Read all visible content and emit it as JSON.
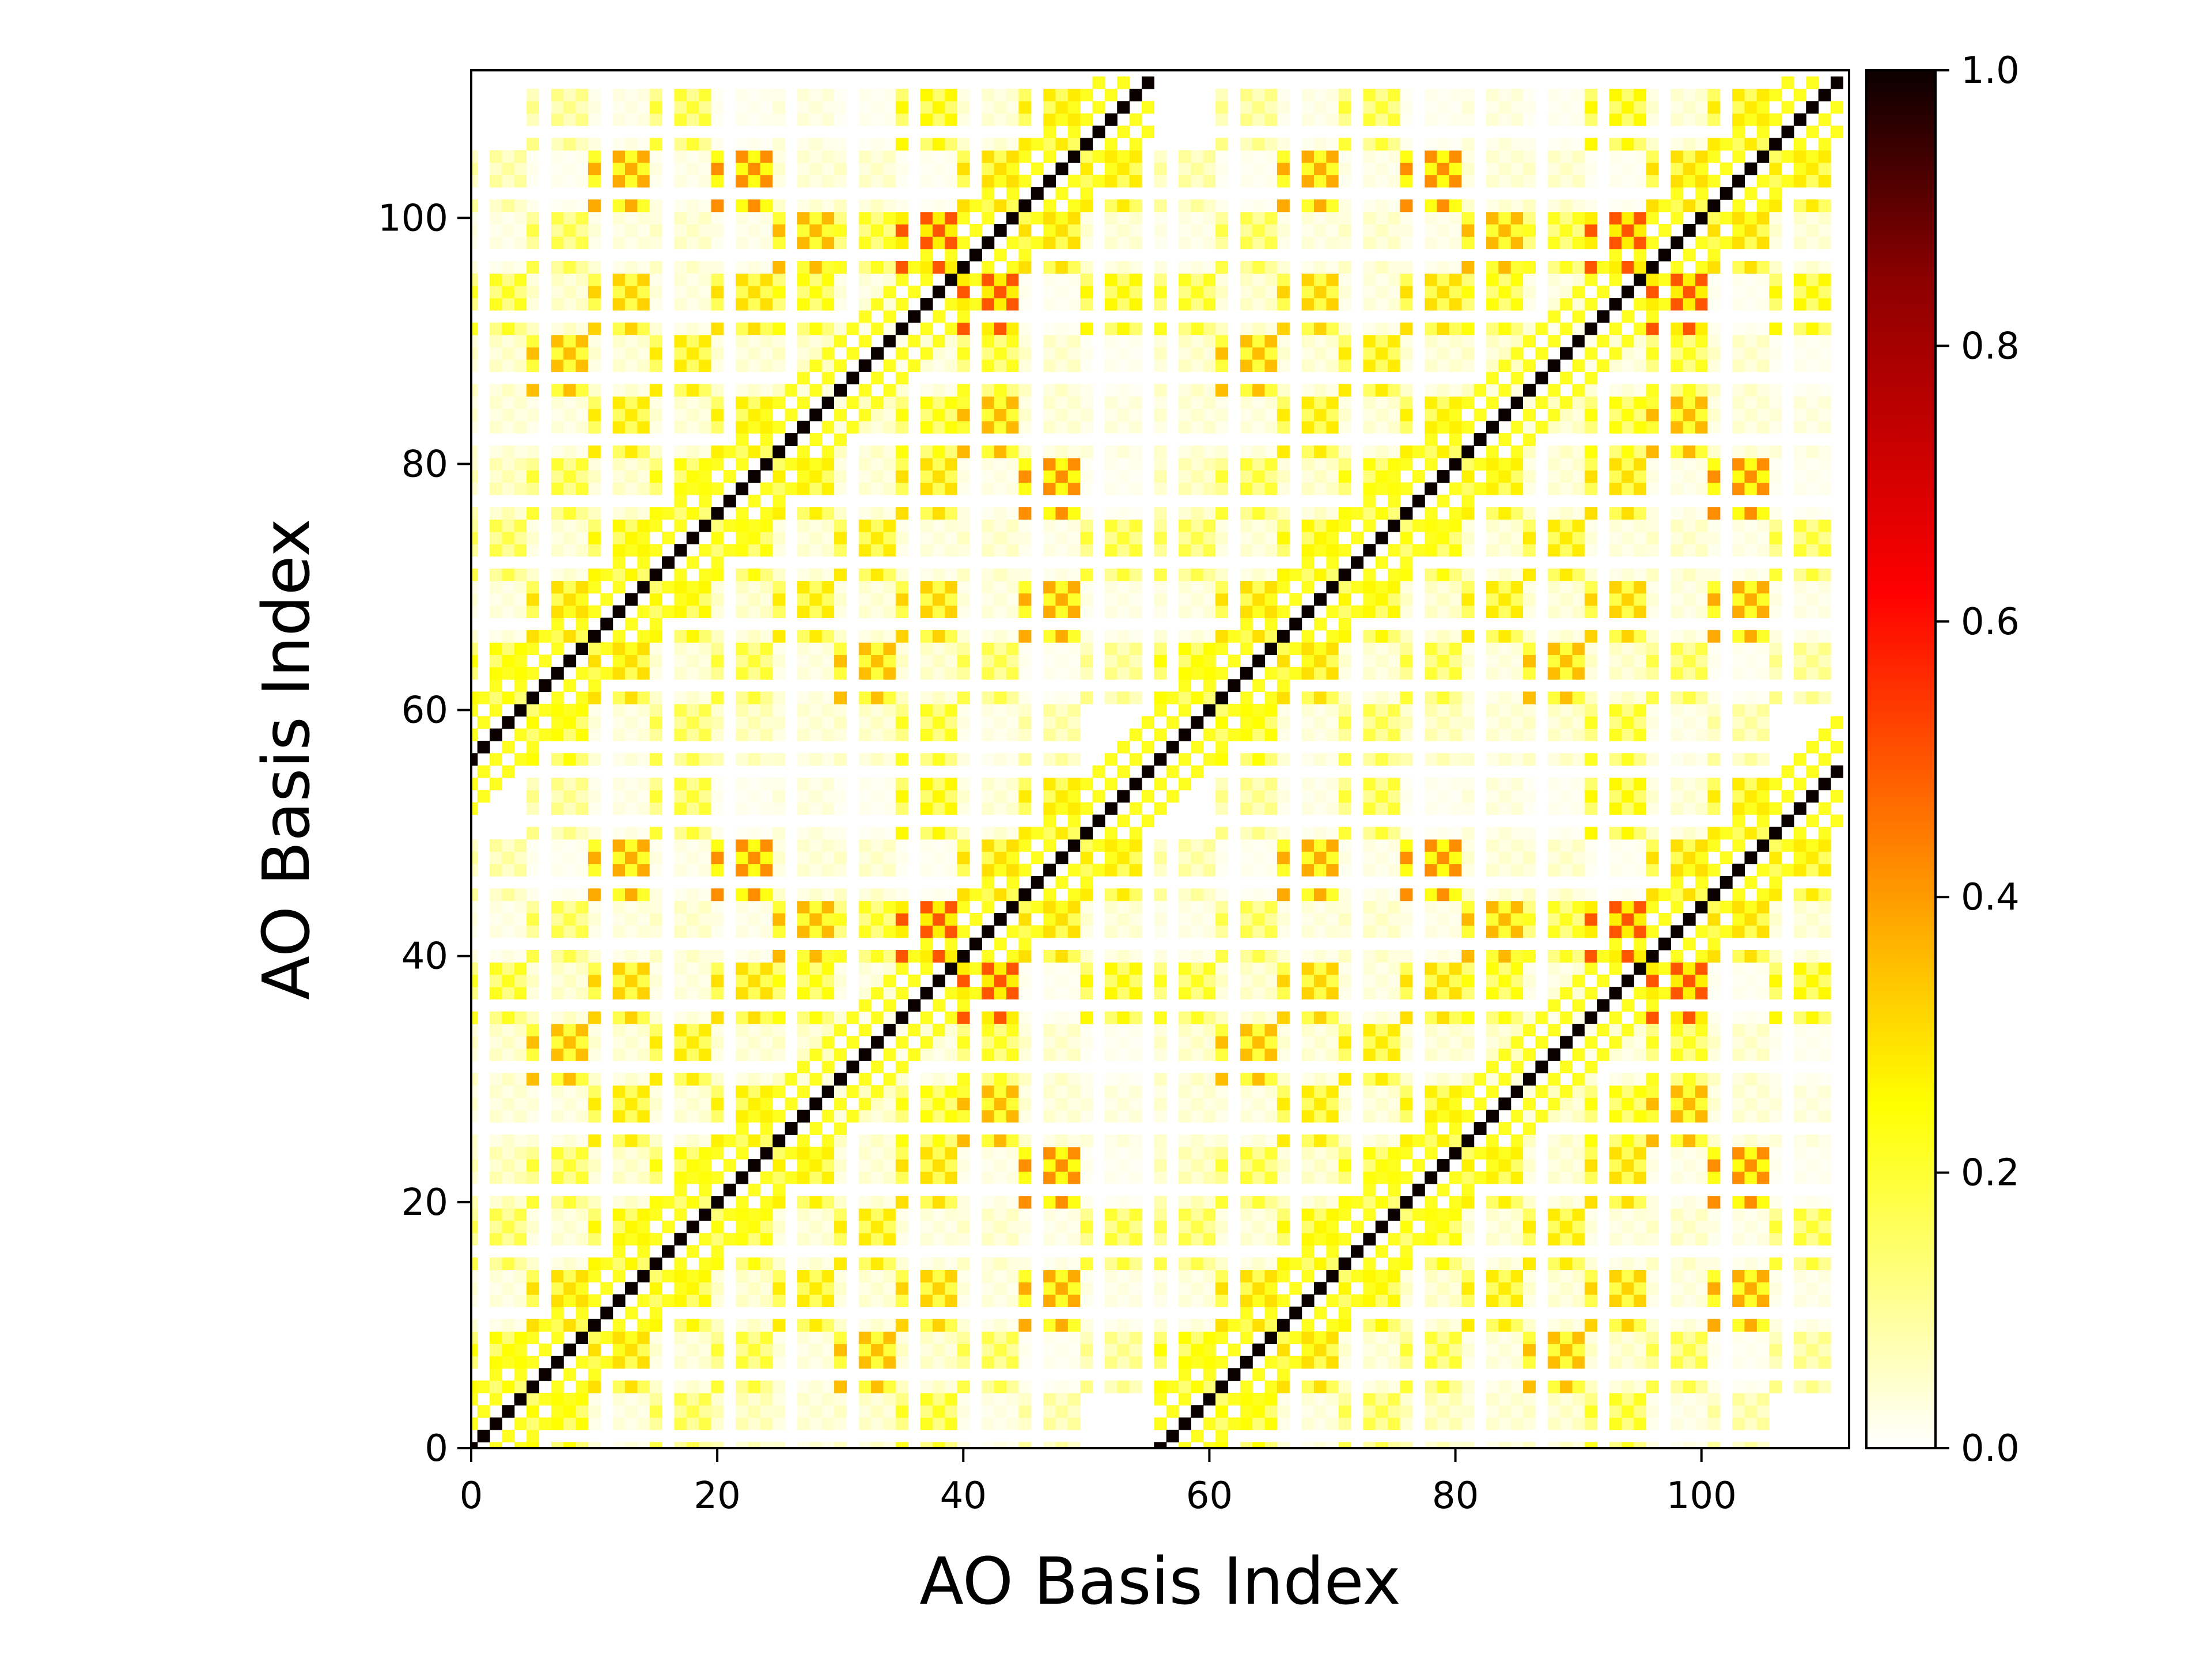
{
  "chart_data": {
    "type": "heatmap",
    "title": "",
    "xlabel": "AO Basis Index",
    "ylabel": "AO Basis Index",
    "matrix_size": 112,
    "xlim": [
      0,
      112
    ],
    "ylim": [
      0,
      112
    ],
    "x_ticks": [
      0,
      20,
      40,
      60,
      80,
      100
    ],
    "y_ticks": [
      0,
      20,
      40,
      60,
      80,
      100
    ],
    "x_tick_labels": [
      "0",
      "20",
      "40",
      "60",
      "80",
      "100"
    ],
    "y_tick_labels": [
      "0",
      "20",
      "40",
      "60",
      "80",
      "100"
    ],
    "colormap": "hot_r",
    "color_range": [
      0.0,
      1.0
    ],
    "colorbar_ticks": [
      0.0,
      0.2,
      0.4,
      0.6,
      0.8,
      1.0
    ],
    "colorbar_tick_labels": [
      "0.0",
      "0.2",
      "0.4",
      "0.6",
      "0.8",
      "1.0"
    ],
    "grid": false,
    "diagonals": [
      {
        "offset": 0,
        "value": 1.0
      },
      {
        "offset": 56,
        "value": 1.0
      },
      {
        "offset": -56,
        "value": 1.0
      }
    ],
    "near_diagonal_offsets": [
      2,
      -2,
      4,
      -4
    ],
    "near_diagonal_value": 0.22,
    "block_period": 56,
    "orbital_block_starts": [
      0,
      5,
      10,
      15,
      20,
      25,
      30,
      35,
      40,
      45,
      50
    ],
    "orbital_block_pattern": [
      0,
      2,
      3,
      4
    ],
    "orbital_block_values": [
      [
        0.0,
        0.25,
        0.04,
        0.18,
        0.08,
        0.05,
        0.06,
        0.22,
        0.03,
        0.1,
        0.0
      ],
      [
        0.25,
        0.0,
        0.3,
        0.05,
        0.2,
        0.04,
        0.35,
        0.06,
        0.18,
        0.02,
        0.12
      ],
      [
        0.04,
        0.3,
        0.0,
        0.26,
        0.06,
        0.28,
        0.05,
        0.32,
        0.04,
        0.38,
        0.03
      ],
      [
        0.18,
        0.05,
        0.26,
        0.0,
        0.24,
        0.05,
        0.28,
        0.04,
        0.06,
        0.03,
        0.2
      ],
      [
        0.08,
        0.2,
        0.06,
        0.24,
        0.0,
        0.27,
        0.05,
        0.3,
        0.03,
        0.42,
        0.02
      ],
      [
        0.05,
        0.04,
        0.28,
        0.05,
        0.27,
        0.0,
        0.06,
        0.24,
        0.36,
        0.05,
        0.04
      ],
      [
        0.06,
        0.35,
        0.05,
        0.28,
        0.05,
        0.06,
        0.0,
        0.04,
        0.22,
        0.06,
        0.02
      ],
      [
        0.22,
        0.06,
        0.32,
        0.04,
        0.3,
        0.24,
        0.04,
        0.0,
        0.5,
        0.02,
        0.26
      ],
      [
        0.03,
        0.18,
        0.04,
        0.06,
        0.03,
        0.36,
        0.22,
        0.5,
        0.0,
        0.3,
        0.05
      ],
      [
        0.1,
        0.02,
        0.38,
        0.03,
        0.42,
        0.05,
        0.06,
        0.02,
        0.3,
        0.0,
        0.28
      ],
      [
        0.0,
        0.12,
        0.03,
        0.2,
        0.02,
        0.04,
        0.02,
        0.26,
        0.05,
        0.28,
        0.0
      ]
    ]
  }
}
